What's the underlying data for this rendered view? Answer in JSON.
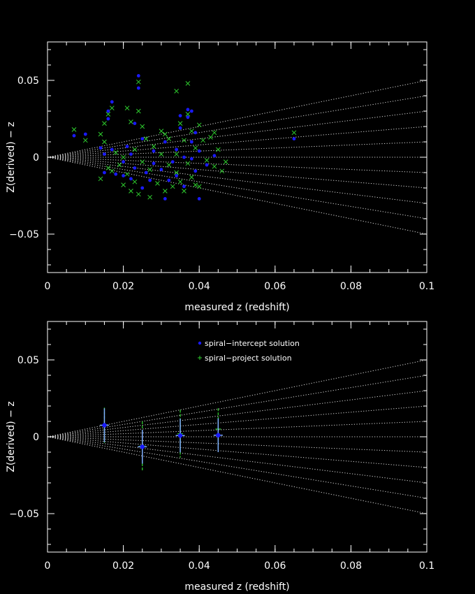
{
  "chart_data": [
    {
      "type": "scatter",
      "title": "",
      "xlabel": "measured z (redshift)",
      "ylabel": "Z(derived) − z",
      "xlim": [
        0,
        0.1
      ],
      "ylim": [
        -0.075,
        0.075
      ],
      "x_ticks": [
        0,
        0.02,
        0.04,
        0.06,
        0.08,
        0.1
      ],
      "x_tick_labels": [
        "0",
        "0.02",
        "0.04",
        "0.06",
        "0.08",
        "0.1"
      ],
      "y_ticks": [
        -0.05,
        0,
        0.05
      ],
      "y_tick_labels": [
        "−0.05",
        "0",
        "0.05"
      ],
      "grid": false,
      "fan_lines": {
        "from": [
          0,
          0
        ],
        "to_x": 0.1,
        "end_y": [
          0.05,
          0.04,
          0.03,
          0.02,
          0.01,
          0,
          -0.01,
          -0.02,
          -0.03,
          -0.04,
          -0.05
        ]
      },
      "series": [
        {
          "marker": "dot",
          "color": "#1a1aff",
          "points": [
            [
              0.007,
              0.014
            ],
            [
              0.01,
              0.015
            ],
            [
              0.014,
              0.006
            ],
            [
              0.015,
              0.002
            ],
            [
              0.015,
              -0.01
            ],
            [
              0.016,
              0.025
            ],
            [
              0.016,
              0.03
            ],
            [
              0.017,
              0.036
            ],
            [
              0.017,
              0.005
            ],
            [
              0.018,
              -0.011
            ],
            [
              0.02,
              -0.003
            ],
            [
              0.02,
              -0.012
            ],
            [
              0.021,
              0.007
            ],
            [
              0.022,
              -0.014
            ],
            [
              0.022,
              0.002
            ],
            [
              0.023,
              0.022
            ],
            [
              0.023,
              -0.007
            ],
            [
              0.024,
              0.053
            ],
            [
              0.024,
              0.045
            ],
            [
              0.025,
              -0.02
            ],
            [
              0.025,
              0.012
            ],
            [
              0.026,
              -0.01
            ],
            [
              0.027,
              -0.015
            ],
            [
              0.028,
              0.004
            ],
            [
              0.028,
              -0.004
            ],
            [
              0.03,
              -0.008
            ],
            [
              0.031,
              -0.027
            ],
            [
              0.031,
              0.01
            ],
            [
              0.032,
              -0.015
            ],
            [
              0.033,
              -0.003
            ],
            [
              0.034,
              0.005
            ],
            [
              0.034,
              -0.012
            ],
            [
              0.035,
              0.019
            ],
            [
              0.035,
              0.027
            ],
            [
              0.036,
              -0.019
            ],
            [
              0.036,
              0.0
            ],
            [
              0.037,
              0.026
            ],
            [
              0.037,
              0.031
            ],
            [
              0.038,
              0.03
            ],
            [
              0.038,
              0.01
            ],
            [
              0.038,
              -0.001
            ],
            [
              0.039,
              -0.009
            ],
            [
              0.039,
              0.016
            ],
            [
              0.04,
              -0.027
            ],
            [
              0.04,
              0.004
            ],
            [
              0.042,
              -0.005
            ],
            [
              0.044,
              0.001
            ],
            [
              0.065,
              0.012
            ]
          ]
        },
        {
          "marker": "x",
          "color": "#2ecc2e",
          "points": [
            [
              0.007,
              0.018
            ],
            [
              0.01,
              0.011
            ],
            [
              0.014,
              0.015
            ],
            [
              0.014,
              -0.014
            ],
            [
              0.015,
              0.01
            ],
            [
              0.015,
              0.022
            ],
            [
              0.016,
              -0.007
            ],
            [
              0.016,
              0.028
            ],
            [
              0.017,
              0.032
            ],
            [
              0.017,
              -0.009
            ],
            [
              0.018,
              0.003
            ],
            [
              0.019,
              -0.005
            ],
            [
              0.02,
              -0.018
            ],
            [
              0.02,
              0.0
            ],
            [
              0.021,
              0.032
            ],
            [
              0.021,
              -0.011
            ],
            [
              0.022,
              0.023
            ],
            [
              0.022,
              -0.022
            ],
            [
              0.023,
              0.005
            ],
            [
              0.023,
              -0.016
            ],
            [
              0.024,
              0.049
            ],
            [
              0.024,
              0.03
            ],
            [
              0.024,
              -0.024
            ],
            [
              0.025,
              0.02
            ],
            [
              0.025,
              -0.003
            ],
            [
              0.026,
              0.012
            ],
            [
              0.027,
              -0.008
            ],
            [
              0.027,
              -0.026
            ],
            [
              0.028,
              0.007
            ],
            [
              0.029,
              -0.017
            ],
            [
              0.03,
              0.017
            ],
            [
              0.03,
              0.002
            ],
            [
              0.031,
              -0.022
            ],
            [
              0.031,
              0.015
            ],
            [
              0.032,
              -0.005
            ],
            [
              0.032,
              0.012
            ],
            [
              0.033,
              -0.019
            ],
            [
              0.034,
              0.043
            ],
            [
              0.034,
              0.002
            ],
            [
              0.034,
              -0.01
            ],
            [
              0.035,
              0.022
            ],
            [
              0.035,
              -0.016
            ],
            [
              0.036,
              0.011
            ],
            [
              0.036,
              -0.022
            ],
            [
              0.037,
              0.048
            ],
            [
              0.037,
              0.028
            ],
            [
              0.037,
              -0.004
            ],
            [
              0.038,
              0.017
            ],
            [
              0.038,
              -0.013
            ],
            [
              0.039,
              0.006
            ],
            [
              0.039,
              -0.018
            ],
            [
              0.04,
              0.021
            ],
            [
              0.04,
              -0.019
            ],
            [
              0.041,
              0.011
            ],
            [
              0.042,
              -0.002
            ],
            [
              0.043,
              0.013
            ],
            [
              0.044,
              0.016
            ],
            [
              0.044,
              -0.006
            ],
            [
              0.045,
              0.005
            ],
            [
              0.046,
              -0.009
            ],
            [
              0.047,
              -0.003
            ],
            [
              0.065,
              0.016
            ]
          ]
        }
      ]
    },
    {
      "type": "scatter",
      "title": "",
      "xlabel": "measured z (redshift)",
      "ylabel": "Z(derived) − z",
      "xlim": [
        0,
        0.1
      ],
      "ylim": [
        -0.075,
        0.075
      ],
      "x_ticks": [
        0,
        0.02,
        0.04,
        0.06,
        0.08,
        0.1
      ],
      "x_tick_labels": [
        "0",
        "0.02",
        "0.04",
        "0.06",
        "0.08",
        "0.1"
      ],
      "y_ticks": [
        -0.05,
        0,
        0.05
      ],
      "y_tick_labels": [
        "−0.05",
        "0",
        "0.05"
      ],
      "grid": false,
      "legend_position": "top-center",
      "fan_lines": {
        "from": [
          0,
          0
        ],
        "to_x": 0.1,
        "end_y": [
          0.05,
          0.04,
          0.03,
          0.02,
          0.01,
          0,
          -0.01,
          -0.02,
          -0.03,
          -0.04,
          -0.05
        ]
      },
      "series": [
        {
          "name": "spiral−intercept solution",
          "marker": "dot-errorbar",
          "color": "#1a1aff",
          "cross_color": "#7fb0ff",
          "x": [
            0.015,
            0.025,
            0.035,
            0.045
          ],
          "y": [
            0.0075,
            -0.0065,
            0.0008,
            0.001
          ],
          "yerr": [
            0.011,
            0.011,
            0.011,
            0.011
          ],
          "xerr": [
            0.0012,
            0.0012,
            0.0012,
            0.0012
          ]
        },
        {
          "name": "spiral−project solution",
          "marker": "plus-errorbar",
          "color": "#2ecc2e",
          "x": [
            0.015,
            0.025,
            0.035,
            0.045
          ],
          "y": [
            0.0075,
            -0.006,
            0.002,
            0.005
          ],
          "yerr": [
            0.0115,
            0.016,
            0.0155,
            0.0135
          ]
        }
      ]
    }
  ]
}
